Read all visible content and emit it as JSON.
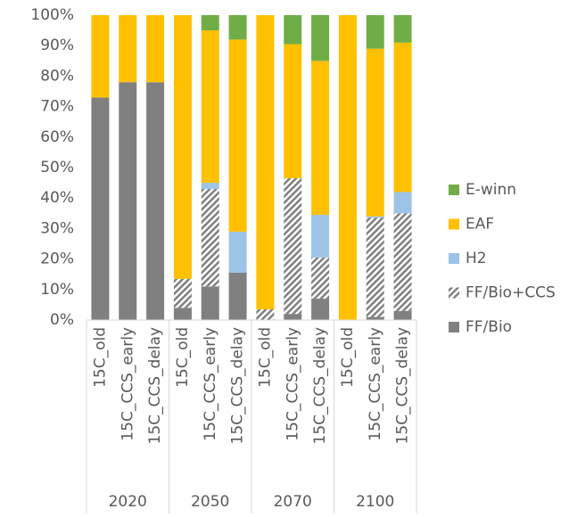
{
  "chart_data": {
    "type": "stacked_bar",
    "categories": [
      "15C_old",
      "15C_CCS_early",
      "15C_CCS_delay",
      "15C_old",
      "15C_CCS_early",
      "15C_CCS_delay",
      "15C_old",
      "15C_CCS_early",
      "15C_CCS_delay",
      "15C_old",
      "15C_CCS_early",
      "15C_CCS_delay"
    ],
    "groups": [
      "2020",
      "2050",
      "2070",
      "2100"
    ],
    "series": [
      {
        "name": "FF/Bio",
        "color": "#808080",
        "values": [
          73,
          78,
          78,
          4,
          11,
          15.5,
          0,
          2,
          7,
          0,
          1,
          3
        ]
      },
      {
        "name": "FF/Bio+CCS",
        "color": "#808080",
        "pattern": "hatch",
        "values": [
          0,
          0,
          0,
          9.5,
          32,
          0,
          3.5,
          44.5,
          13.5,
          0,
          32.5,
          32
        ]
      },
      {
        "name": "H2",
        "color": "#9dc3e6",
        "values": [
          0,
          0,
          0,
          0,
          2,
          13.5,
          0,
          0,
          14,
          0,
          0.5,
          7
        ]
      },
      {
        "name": "EAF",
        "color": "#ffc000",
        "values": [
          27,
          22,
          22,
          86.5,
          50,
          63,
          96.5,
          44,
          50.5,
          100,
          55,
          49
        ]
      },
      {
        "name": "E-winn",
        "color": "#70ad47",
        "values": [
          0,
          0,
          0,
          0,
          5,
          8,
          0,
          9.5,
          15,
          0,
          11,
          9
        ]
      }
    ],
    "ylim": [
      0,
      100
    ],
    "yticks": [
      {
        "value": 0,
        "label": "0%"
      },
      {
        "value": 10,
        "label": "10%"
      },
      {
        "value": 20,
        "label": "20%"
      },
      {
        "value": 30,
        "label": "30%"
      },
      {
        "value": 40,
        "label": "40%"
      },
      {
        "value": 50,
        "label": "50%"
      },
      {
        "value": 60,
        "label": "60%"
      },
      {
        "value": 70,
        "label": "70%"
      },
      {
        "value": 80,
        "label": "80%"
      },
      {
        "value": 90,
        "label": "90%"
      },
      {
        "value": 100,
        "label": "100%"
      }
    ],
    "legend": "right"
  }
}
